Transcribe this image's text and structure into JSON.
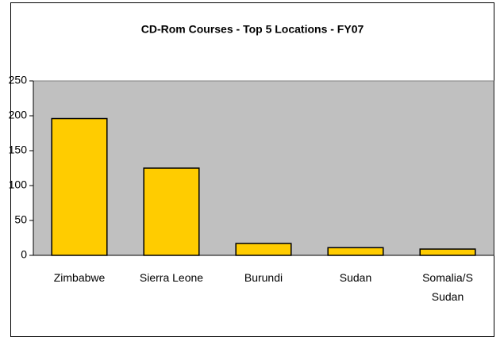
{
  "chart_data": {
    "type": "bar",
    "title": "CD-Rom Courses - Top 5 Locations - FY07",
    "categories": [
      "Zimbabwe",
      "Sierra Leone",
      "Burundi",
      "Sudan",
      "Somalia/S Sudan"
    ],
    "values": [
      196,
      125,
      17,
      11,
      9
    ],
    "color": "#ffcc00",
    "ylim": [
      0,
      250
    ],
    "yticks": [
      0,
      50,
      100,
      150,
      200,
      250
    ],
    "grid": false
  }
}
